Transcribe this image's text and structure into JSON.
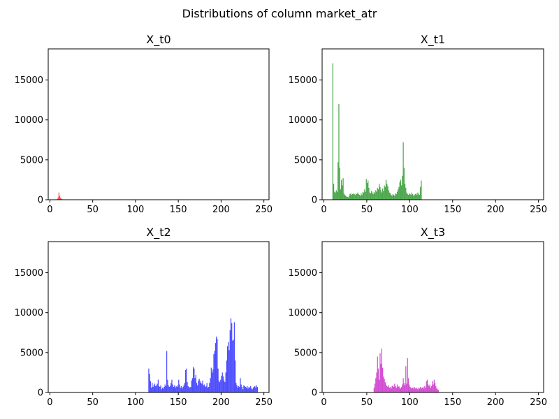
{
  "figure": {
    "suptitle": "Distributions of column market_atr"
  },
  "chart_data": [
    {
      "type": "bar",
      "title": "X_t0",
      "color": "#ff0000",
      "xlim": [
        -2,
        256
      ],
      "ylim": [
        0,
        18900
      ],
      "xticks": [
        0,
        50,
        100,
        150,
        200,
        250
      ],
      "yticks": [
        0,
        5000,
        10000,
        15000
      ],
      "bin_width": 1,
      "bins": [
        [
          8,
          80
        ],
        [
          9,
          300
        ],
        [
          10,
          900
        ],
        [
          11,
          500
        ],
        [
          12,
          250
        ],
        [
          13,
          120
        ],
        [
          14,
          60
        ],
        [
          15,
          30
        ]
      ]
    },
    {
      "type": "bar",
      "title": "X_t1",
      "color": "#008000",
      "xlim": [
        -2,
        256
      ],
      "ylim": [
        0,
        18900
      ],
      "xticks": [
        0,
        50,
        100,
        150,
        200,
        250
      ],
      "yticks": [
        0,
        5000,
        10000,
        15000
      ],
      "bin_width": 1,
      "bins": [
        [
          10,
          17100
        ],
        [
          11,
          2000
        ],
        [
          12,
          1000
        ],
        [
          13,
          900
        ],
        [
          14,
          1200
        ],
        [
          15,
          1000
        ],
        [
          16,
          4700
        ],
        [
          17,
          12000
        ],
        [
          18,
          4000
        ],
        [
          19,
          1300
        ],
        [
          20,
          2500
        ],
        [
          21,
          1800
        ],
        [
          22,
          2700
        ],
        [
          23,
          800
        ],
        [
          24,
          600
        ],
        [
          25,
          500
        ],
        [
          26,
          400
        ],
        [
          27,
          350
        ],
        [
          28,
          300
        ],
        [
          29,
          500
        ],
        [
          30,
          700
        ],
        [
          31,
          800
        ],
        [
          32,
          600
        ],
        [
          33,
          700
        ],
        [
          34,
          800
        ],
        [
          35,
          700
        ],
        [
          36,
          600
        ],
        [
          37,
          800
        ],
        [
          38,
          700
        ],
        [
          39,
          900
        ],
        [
          40,
          700
        ],
        [
          41,
          600
        ],
        [
          42,
          500
        ],
        [
          43,
          800
        ],
        [
          44,
          600
        ],
        [
          45,
          1000
        ],
        [
          46,
          900
        ],
        [
          47,
          1300
        ],
        [
          48,
          1000
        ],
        [
          49,
          2600
        ],
        [
          50,
          2100
        ],
        [
          51,
          2400
        ],
        [
          52,
          1500
        ],
        [
          53,
          900
        ],
        [
          54,
          800
        ],
        [
          55,
          1100
        ],
        [
          56,
          900
        ],
        [
          57,
          700
        ],
        [
          58,
          1000
        ],
        [
          59,
          800
        ],
        [
          60,
          1200
        ],
        [
          61,
          1000
        ],
        [
          62,
          1500
        ],
        [
          63,
          1300
        ],
        [
          64,
          2000
        ],
        [
          65,
          1600
        ],
        [
          66,
          1200
        ],
        [
          67,
          900
        ],
        [
          68,
          1400
        ],
        [
          69,
          1100
        ],
        [
          70,
          1800
        ],
        [
          71,
          1600
        ],
        [
          72,
          2500
        ],
        [
          73,
          2000
        ],
        [
          74,
          1700
        ],
        [
          75,
          1200
        ],
        [
          76,
          900
        ],
        [
          77,
          800
        ],
        [
          78,
          600
        ],
        [
          79,
          500
        ],
        [
          80,
          700
        ],
        [
          81,
          600
        ],
        [
          82,
          500
        ],
        [
          83,
          800
        ],
        [
          84,
          700
        ],
        [
          85,
          1000
        ],
        [
          86,
          1300
        ],
        [
          87,
          1600
        ],
        [
          88,
          2200
        ],
        [
          89,
          2500
        ],
        [
          90,
          1800
        ],
        [
          91,
          3000
        ],
        [
          92,
          7200
        ],
        [
          93,
          4000
        ],
        [
          94,
          2000
        ],
        [
          95,
          1500
        ],
        [
          96,
          900
        ],
        [
          97,
          700
        ],
        [
          98,
          600
        ],
        [
          99,
          800
        ],
        [
          100,
          700
        ],
        [
          101,
          600
        ],
        [
          102,
          900
        ],
        [
          103,
          700
        ],
        [
          104,
          500
        ],
        [
          105,
          600
        ],
        [
          106,
          700
        ],
        [
          107,
          800
        ],
        [
          108,
          600
        ],
        [
          109,
          900
        ],
        [
          110,
          700
        ],
        [
          111,
          600
        ],
        [
          112,
          1600
        ],
        [
          113,
          2400
        ]
      ]
    },
    {
      "type": "bar",
      "title": "X_t2",
      "color": "#0000ff",
      "xlim": [
        -2,
        256
      ],
      "ylim": [
        0,
        18900
      ],
      "xticks": [
        0,
        50,
        100,
        150,
        200,
        250
      ],
      "yticks": [
        0,
        5000,
        10000,
        15000
      ],
      "bin_width": 1,
      "bins": [
        [
          115,
          3000
        ],
        [
          116,
          2300
        ],
        [
          117,
          1400
        ],
        [
          118,
          600
        ],
        [
          119,
          1200
        ],
        [
          120,
          700
        ],
        [
          121,
          900
        ],
        [
          122,
          1100
        ],
        [
          123,
          800
        ],
        [
          124,
          900
        ],
        [
          125,
          1100
        ],
        [
          126,
          1600
        ],
        [
          127,
          800
        ],
        [
          128,
          700
        ],
        [
          129,
          900
        ],
        [
          130,
          400
        ],
        [
          131,
          600
        ],
        [
          132,
          500
        ],
        [
          133,
          700
        ],
        [
          134,
          1000
        ],
        [
          135,
          800
        ],
        [
          136,
          5200
        ],
        [
          137,
          1600
        ],
        [
          138,
          900
        ],
        [
          139,
          700
        ],
        [
          140,
          800
        ],
        [
          141,
          1200
        ],
        [
          142,
          1600
        ],
        [
          143,
          1000
        ],
        [
          144,
          700
        ],
        [
          145,
          900
        ],
        [
          146,
          600
        ],
        [
          147,
          800
        ],
        [
          148,
          700
        ],
        [
          149,
          900
        ],
        [
          150,
          1600
        ],
        [
          151,
          1000
        ],
        [
          152,
          600
        ],
        [
          153,
          800
        ],
        [
          154,
          500
        ],
        [
          155,
          700
        ],
        [
          156,
          900
        ],
        [
          157,
          1200
        ],
        [
          158,
          2800
        ],
        [
          159,
          3000
        ],
        [
          160,
          1300
        ],
        [
          161,
          800
        ],
        [
          162,
          700
        ],
        [
          163,
          600
        ],
        [
          164,
          700
        ],
        [
          165,
          1500
        ],
        [
          166,
          1800
        ],
        [
          167,
          3200
        ],
        [
          168,
          3000
        ],
        [
          169,
          1800
        ],
        [
          170,
          2200
        ],
        [
          171,
          1200
        ],
        [
          172,
          900
        ],
        [
          173,
          1500
        ],
        [
          174,
          1700
        ],
        [
          175,
          1400
        ],
        [
          176,
          1200
        ],
        [
          177,
          1100
        ],
        [
          178,
          1500
        ],
        [
          179,
          900
        ],
        [
          180,
          1000
        ],
        [
          181,
          700
        ],
        [
          182,
          800
        ],
        [
          183,
          1200
        ],
        [
          184,
          600
        ],
        [
          185,
          700
        ],
        [
          186,
          1200
        ],
        [
          187,
          1800
        ],
        [
          188,
          3100
        ],
        [
          189,
          2500
        ],
        [
          190,
          2900
        ],
        [
          191,
          4800
        ],
        [
          192,
          5200
        ],
        [
          193,
          6200
        ],
        [
          194,
          7000
        ],
        [
          195,
          6700
        ],
        [
          196,
          3000
        ],
        [
          197,
          1500
        ],
        [
          198,
          1300
        ],
        [
          199,
          1600
        ],
        [
          200,
          2100
        ],
        [
          201,
          2500
        ],
        [
          202,
          2000
        ],
        [
          203,
          1500
        ],
        [
          204,
          1300
        ],
        [
          205,
          2500
        ],
        [
          206,
          4000
        ],
        [
          207,
          5800
        ],
        [
          208,
          6300
        ],
        [
          209,
          5300
        ],
        [
          210,
          7800
        ],
        [
          211,
          9300
        ],
        [
          212,
          8700
        ],
        [
          213,
          6500
        ],
        [
          214,
          6600
        ],
        [
          215,
          8800
        ],
        [
          216,
          4000
        ],
        [
          217,
          1200
        ],
        [
          218,
          900
        ],
        [
          219,
          600
        ],
        [
          220,
          800
        ],
        [
          221,
          700
        ],
        [
          222,
          1800
        ],
        [
          223,
          1000
        ],
        [
          224,
          700
        ],
        [
          225,
          400
        ],
        [
          226,
          900
        ],
        [
          227,
          800
        ],
        [
          228,
          700
        ],
        [
          229,
          600
        ],
        [
          230,
          800
        ],
        [
          231,
          500
        ],
        [
          232,
          700
        ],
        [
          233,
          600
        ],
        [
          234,
          800
        ],
        [
          235,
          500
        ],
        [
          236,
          400
        ],
        [
          237,
          600
        ],
        [
          238,
          700
        ],
        [
          239,
          800
        ],
        [
          240,
          600
        ],
        [
          241,
          900
        ],
        [
          242,
          700
        ]
      ]
    },
    {
      "type": "bar",
      "title": "X_t3",
      "color": "#bf00bf",
      "xlim": [
        -2,
        256
      ],
      "ylim": [
        0,
        18900
      ],
      "xticks": [
        0,
        50,
        100,
        150,
        200,
        250
      ],
      "yticks": [
        0,
        5000,
        10000,
        15000
      ],
      "bin_width": 1,
      "bins": [
        [
          58,
          600
        ],
        [
          59,
          1100
        ],
        [
          60,
          1800
        ],
        [
          61,
          2500
        ],
        [
          62,
          4500
        ],
        [
          63,
          3000
        ],
        [
          64,
          1600
        ],
        [
          65,
          4900
        ],
        [
          66,
          3600
        ],
        [
          67,
          5500
        ],
        [
          68,
          3100
        ],
        [
          69,
          2000
        ],
        [
          70,
          1700
        ],
        [
          71,
          1300
        ],
        [
          72,
          1000
        ],
        [
          73,
          800
        ],
        [
          74,
          700
        ],
        [
          75,
          900
        ],
        [
          76,
          600
        ],
        [
          77,
          700
        ],
        [
          78,
          500
        ],
        [
          79,
          800
        ],
        [
          80,
          900
        ],
        [
          81,
          700
        ],
        [
          82,
          1100
        ],
        [
          83,
          800
        ],
        [
          84,
          600
        ],
        [
          85,
          1000
        ],
        [
          86,
          700
        ],
        [
          87,
          800
        ],
        [
          88,
          600
        ],
        [
          89,
          500
        ],
        [
          90,
          700
        ],
        [
          91,
          1000
        ],
        [
          92,
          1800
        ],
        [
          93,
          1200
        ],
        [
          94,
          900
        ],
        [
          95,
          3300
        ],
        [
          96,
          1100
        ],
        [
          97,
          4300
        ],
        [
          98,
          1800
        ],
        [
          99,
          1000
        ],
        [
          100,
          700
        ],
        [
          101,
          600
        ],
        [
          102,
          500
        ],
        [
          103,
          600
        ],
        [
          104,
          500
        ],
        [
          105,
          700
        ],
        [
          106,
          500
        ],
        [
          107,
          600
        ],
        [
          108,
          500
        ],
        [
          109,
          400
        ],
        [
          110,
          600
        ],
        [
          111,
          500
        ],
        [
          112,
          700
        ],
        [
          113,
          500
        ],
        [
          114,
          600
        ],
        [
          115,
          700
        ],
        [
          116,
          500
        ],
        [
          117,
          800
        ],
        [
          118,
          600
        ],
        [
          119,
          1400
        ],
        [
          120,
          1600
        ],
        [
          121,
          1000
        ],
        [
          122,
          800
        ],
        [
          123,
          1000
        ],
        [
          124,
          600
        ],
        [
          125,
          800
        ],
        [
          126,
          1400
        ],
        [
          127,
          1000
        ],
        [
          128,
          1600
        ],
        [
          129,
          1200
        ],
        [
          130,
          800
        ],
        [
          131,
          500
        ],
        [
          132,
          400
        ],
        [
          133,
          300
        ]
      ]
    }
  ]
}
